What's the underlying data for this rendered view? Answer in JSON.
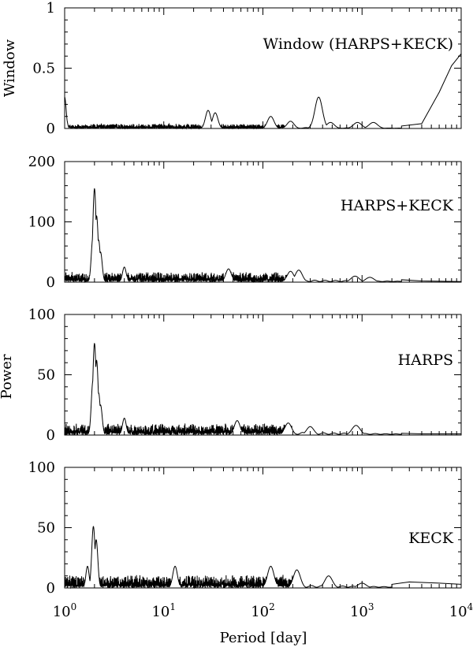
{
  "chart_data": {
    "type": "line",
    "xlabel": "Period [day]",
    "x_scale": "log",
    "xlim": [
      1,
      10000
    ],
    "x_ticks": [
      {
        "value": 1,
        "base": "10",
        "exp": "0"
      },
      {
        "value": 10,
        "base": "10",
        "exp": "1"
      },
      {
        "value": 100,
        "base": "10",
        "exp": "2"
      },
      {
        "value": 1000,
        "base": "10",
        "exp": "3"
      },
      {
        "value": 10000,
        "base": "10",
        "exp": "4"
      }
    ],
    "shared_ylabel": "Power",
    "panels": [
      {
        "label": "Window (HARPS+KECK)",
        "ylabel": "Window",
        "ylim": [
          0,
          1
        ],
        "y_ticks": [
          {
            "value": 0,
            "label": "0"
          },
          {
            "value": 0.5,
            "label": "0.5"
          },
          {
            "value": 1,
            "label": "1"
          }
        ],
        "noise": {
          "base": 0.01,
          "amp": 0.03
        },
        "peaks": [
          {
            "period": 1.0,
            "value": 0.26
          },
          {
            "period": 1.02,
            "value": 0.12
          },
          {
            "period": 28,
            "value": 0.15
          },
          {
            "period": 33,
            "value": 0.13
          },
          {
            "period": 120,
            "value": 0.1
          },
          {
            "period": 190,
            "value": 0.06
          },
          {
            "period": 365,
            "value": 0.26
          },
          {
            "period": 480,
            "value": 0.05
          },
          {
            "period": 900,
            "value": 0.05
          },
          {
            "period": 1300,
            "value": 0.05
          }
        ],
        "tail": [
          [
            2500,
            0.02
          ],
          [
            4000,
            0.04
          ],
          [
            6000,
            0.3
          ],
          [
            8000,
            0.52
          ],
          [
            10000,
            0.62
          ]
        ]
      },
      {
        "label": "HARPS+KECK",
        "ylabel": "",
        "ylim": [
          0,
          200
        ],
        "y_ticks": [
          {
            "value": 0,
            "label": "0"
          },
          {
            "value": 100,
            "label": "100"
          },
          {
            "value": 200,
            "label": "200"
          }
        ],
        "noise": {
          "base": 5,
          "amp": 12
        },
        "peaks": [
          {
            "period": 1.93,
            "value": 75
          },
          {
            "period": 2.0,
            "value": 155
          },
          {
            "period": 2.05,
            "value": 95
          },
          {
            "period": 2.1,
            "value": 110
          },
          {
            "period": 2.2,
            "value": 70
          },
          {
            "period": 2.3,
            "value": 50
          },
          {
            "period": 4.0,
            "value": 25
          },
          {
            "period": 45,
            "value": 22
          },
          {
            "period": 190,
            "value": 18
          },
          {
            "period": 230,
            "value": 20
          },
          {
            "period": 850,
            "value": 10
          },
          {
            "period": 1200,
            "value": 8
          }
        ],
        "tail": [
          [
            2500,
            4
          ],
          [
            4000,
            2
          ],
          [
            10000,
            1
          ]
        ]
      },
      {
        "label": "HARPS",
        "ylabel": "",
        "ylim": [
          0,
          100
        ],
        "y_ticks": [
          {
            "value": 0,
            "label": "0"
          },
          {
            "value": 50,
            "label": "50"
          },
          {
            "value": 100,
            "label": "100"
          }
        ],
        "noise": {
          "base": 3,
          "amp": 7
        },
        "peaks": [
          {
            "period": 1.93,
            "value": 45
          },
          {
            "period": 2.0,
            "value": 76
          },
          {
            "period": 2.05,
            "value": 55
          },
          {
            "period": 2.1,
            "value": 62
          },
          {
            "period": 2.2,
            "value": 35
          },
          {
            "period": 2.3,
            "value": 25
          },
          {
            "period": 4.0,
            "value": 14
          },
          {
            "period": 55,
            "value": 12
          },
          {
            "period": 180,
            "value": 10
          },
          {
            "period": 300,
            "value": 7
          },
          {
            "period": 870,
            "value": 8
          }
        ],
        "tail": [
          [
            2500,
            1.5
          ],
          [
            4000,
            1
          ],
          [
            10000,
            1
          ]
        ]
      },
      {
        "label": "KECK",
        "ylabel": "",
        "ylim": [
          0,
          100
        ],
        "y_ticks": [
          {
            "value": 0,
            "label": "0"
          },
          {
            "value": 50,
            "label": "50"
          },
          {
            "value": 100,
            "label": "100"
          }
        ],
        "noise": {
          "base": 3,
          "amp": 8
        },
        "peaks": [
          {
            "period": 1.95,
            "value": 51
          },
          {
            "period": 2.08,
            "value": 40
          },
          {
            "period": 1.7,
            "value": 18
          },
          {
            "period": 13,
            "value": 18
          },
          {
            "period": 120,
            "value": 18
          },
          {
            "period": 220,
            "value": 15
          },
          {
            "period": 460,
            "value": 10
          },
          {
            "period": 1000,
            "value": 4
          }
        ],
        "tail": [
          [
            2000,
            3
          ],
          [
            3000,
            5
          ],
          [
            6000,
            4
          ],
          [
            10000,
            3
          ]
        ]
      }
    ]
  }
}
